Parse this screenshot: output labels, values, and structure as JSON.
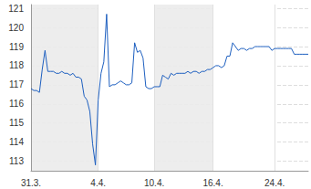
{
  "chart_data": {
    "type": "line",
    "color": "#1d5fc0",
    "grid": true,
    "categories": [
      "31.3.",
      null,
      null,
      null,
      null,
      null,
      null,
      null,
      null,
      null,
      null,
      null,
      null,
      null,
      null,
      null,
      null,
      null,
      null,
      null,
      null,
      null,
      null,
      null,
      "4.4.",
      null,
      null,
      null,
      null,
      null,
      null,
      null,
      null,
      null,
      null,
      null,
      null,
      null,
      null,
      null,
      null,
      null,
      null,
      null,
      "10.4.",
      null,
      null,
      null,
      null,
      null,
      null,
      null,
      null,
      null,
      null,
      null,
      null,
      null,
      null,
      null,
      null,
      null,
      null,
      null,
      null,
      "16.4.",
      null,
      null,
      null,
      null,
      null,
      null,
      null,
      null,
      null,
      null,
      null,
      null,
      null,
      null,
      null,
      null,
      null,
      null,
      null,
      null,
      null,
      "24.4.",
      null,
      null,
      null,
      null,
      null,
      null,
      null,
      null,
      null,
      null,
      null,
      null
    ],
    "values": [
      116.8,
      116.7,
      116.7,
      116.6,
      117.8,
      118.8,
      117.7,
      117.7,
      117.7,
      117.6,
      117.6,
      117.7,
      117.6,
      117.6,
      117.5,
      117.6,
      117.4,
      117.4,
      117.3,
      116.4,
      116.2,
      115.6,
      113.9,
      112.8,
      116.2,
      117.6,
      118.2,
      120.7,
      116.9,
      117.0,
      117.0,
      117.1,
      117.2,
      117.1,
      117.0,
      117.0,
      117.1,
      119.2,
      118.7,
      118.8,
      118.4,
      116.9,
      116.8,
      116.8,
      116.9,
      116.9,
      116.9,
      117.5,
      117.4,
      117.3,
      117.6,
      117.5,
      117.6,
      117.6,
      117.6,
      117.6,
      117.7,
      117.6,
      117.7,
      117.7,
      117.6,
      117.7,
      117.7,
      117.8,
      117.8,
      117.9,
      118.0,
      118.0,
      117.9,
      118.0,
      118.5,
      118.5,
      119.2,
      119.0,
      118.8,
      118.9,
      118.9,
      118.8,
      118.9,
      118.9,
      119.0,
      119.0,
      119.0,
      119.0,
      119.0,
      119.0,
      118.8,
      118.9,
      118.9,
      118.9,
      118.9,
      118.9,
      118.9,
      118.9,
      118.6,
      118.6,
      118.6,
      118.6,
      118.6,
      118.6
    ],
    "ylim": [
      112.5,
      121.2
    ],
    "yticks": [
      113,
      114,
      115,
      116,
      117,
      118,
      119,
      120,
      121
    ]
  }
}
